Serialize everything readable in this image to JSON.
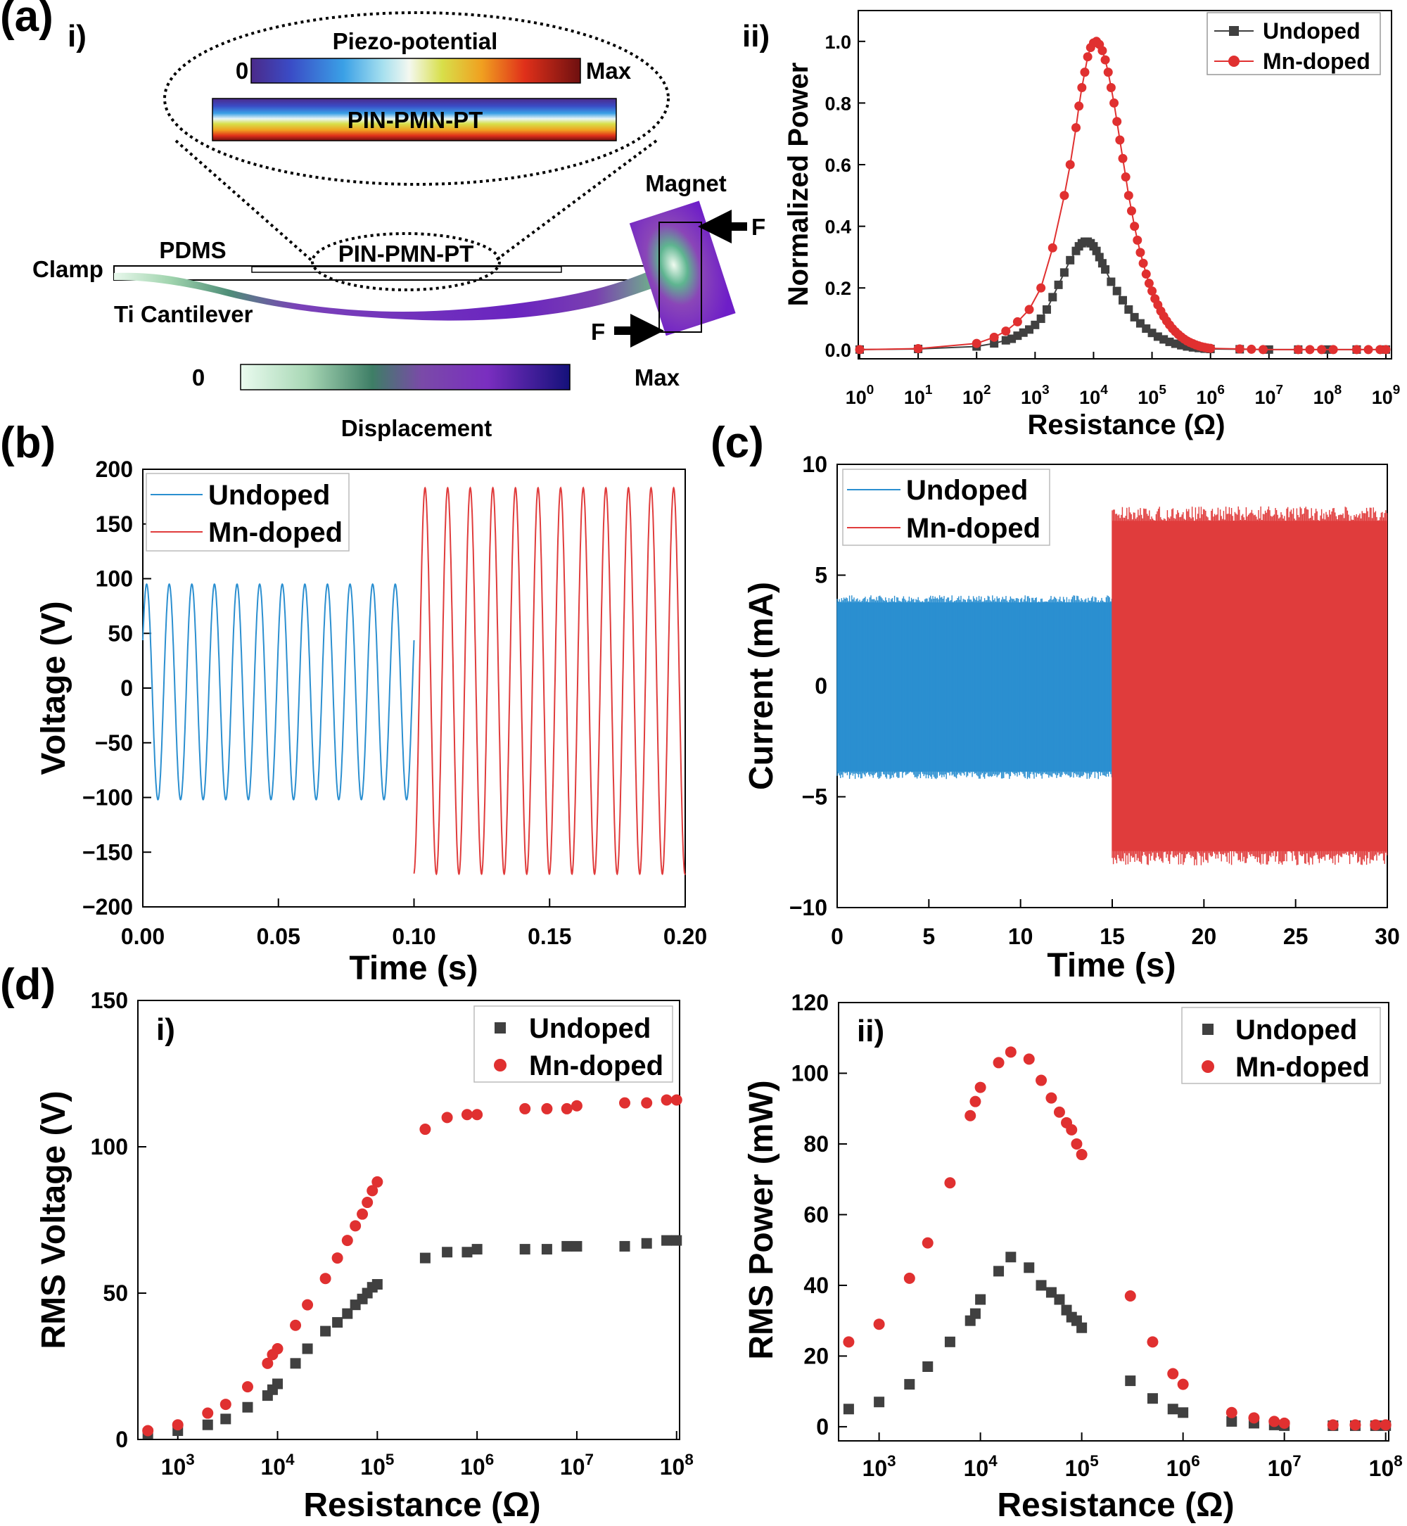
{
  "panel_labels": {
    "a": "(a)",
    "b": "(b)",
    "c": "(c)",
    "d": "(d)",
    "a_i": "i)",
    "a_ii": "ii)",
    "d_i": "i)",
    "d_ii": "ii)"
  },
  "schematic": {
    "piezo_title": "Piezo-potential",
    "piezo_min": "0",
    "piezo_max": "Max",
    "material": "PIN-PMN-PT",
    "material_small": "PIN-PMN-PT",
    "magnet": "Magnet",
    "pdms": "PDMS",
    "clamp": "Clamp",
    "cantilever": "Ti Cantilever",
    "force1": "F",
    "force2": "F",
    "disp_min": "0",
    "disp_max": "Max",
    "disp_title": "Displacement"
  },
  "colors": {
    "undoped_gray": "#404040",
    "mn_red": "#e03030",
    "undoped_blue": "#2b8fd0",
    "mn_red2": "#e03c3c"
  },
  "chart_data": [
    {
      "id": "a-ii",
      "type": "line",
      "title": "",
      "xlabel": "Resistance (Ω)",
      "ylabel": "Normalized Power",
      "xscale": "log",
      "xlim_exp": [
        0,
        9
      ],
      "ylim": [
        -0.03,
        1.1
      ],
      "xticks_exp": [
        0,
        1,
        2,
        3,
        4,
        5,
        6,
        7,
        8,
        9
      ],
      "yticks": [
        0.0,
        0.2,
        0.4,
        0.6,
        0.8,
        1.0
      ],
      "ytick_labels": [
        "0.0",
        "0.2",
        "0.4",
        "0.6",
        "0.8",
        "1.0"
      ],
      "legend": [
        "Undoped",
        "Mn-doped"
      ],
      "legend_position": "top-right",
      "series": [
        {
          "name": "Undoped",
          "marker": "square",
          "x_exp": [
            0,
            1,
            2,
            2.3,
            2.5,
            2.6,
            2.7,
            2.8,
            2.9,
            3.0,
            3.1,
            3.2,
            3.3,
            3.4,
            3.5,
            3.6,
            3.7,
            3.75,
            3.8,
            3.85,
            3.9,
            3.95,
            4.0,
            4.05,
            4.1,
            4.15,
            4.2,
            4.3,
            4.4,
            4.5,
            4.6,
            4.7,
            4.8,
            4.9,
            5.0,
            5.1,
            5.2,
            5.3,
            5.4,
            5.5,
            5.6,
            5.7,
            5.8,
            5.9,
            6.0,
            6.5,
            7.0,
            7.5,
            8.0,
            8.5,
            9.0
          ],
          "y": [
            0,
            0.002,
            0.01,
            0.02,
            0.03,
            0.035,
            0.045,
            0.055,
            0.065,
            0.08,
            0.1,
            0.13,
            0.17,
            0.21,
            0.25,
            0.29,
            0.32,
            0.335,
            0.345,
            0.35,
            0.35,
            0.345,
            0.335,
            0.32,
            0.3,
            0.28,
            0.26,
            0.22,
            0.19,
            0.16,
            0.13,
            0.105,
            0.085,
            0.068,
            0.054,
            0.042,
            0.033,
            0.025,
            0.019,
            0.014,
            0.01,
            0.007,
            0.005,
            0.003,
            0.002,
            0.001,
            0,
            0,
            0,
            0,
            0
          ]
        },
        {
          "name": "Mn-doped",
          "marker": "circle",
          "x_exp": [
            0,
            1,
            2,
            2.3,
            2.5,
            2.7,
            2.9,
            3.1,
            3.3,
            3.5,
            3.6,
            3.7,
            3.75,
            3.8,
            3.85,
            3.9,
            3.95,
            4.0,
            4.05,
            4.1,
            4.15,
            4.2,
            4.25,
            4.3,
            4.35,
            4.4,
            4.45,
            4.5,
            4.55,
            4.6,
            4.65,
            4.7,
            4.75,
            4.8,
            4.85,
            4.9,
            4.95,
            5.0,
            5.05,
            5.1,
            5.15,
            5.2,
            5.25,
            5.3,
            5.35,
            5.4,
            5.45,
            5.5,
            5.55,
            5.6,
            5.65,
            5.7,
            5.75,
            5.8,
            5.85,
            5.9,
            5.95,
            6.0,
            6.5,
            6.7,
            6.9,
            7.5,
            7.7,
            7.9,
            8.1,
            8.5,
            8.7,
            8.9,
            9.0
          ],
          "y": [
            0,
            0.003,
            0.02,
            0.04,
            0.06,
            0.09,
            0.13,
            0.2,
            0.33,
            0.5,
            0.6,
            0.72,
            0.79,
            0.85,
            0.9,
            0.95,
            0.98,
            0.995,
            1.0,
            0.99,
            0.97,
            0.94,
            0.9,
            0.85,
            0.8,
            0.74,
            0.68,
            0.62,
            0.56,
            0.5,
            0.45,
            0.4,
            0.355,
            0.315,
            0.28,
            0.245,
            0.215,
            0.19,
            0.165,
            0.145,
            0.125,
            0.108,
            0.093,
            0.08,
            0.068,
            0.058,
            0.049,
            0.041,
            0.034,
            0.028,
            0.023,
            0.019,
            0.015,
            0.012,
            0.009,
            0.007,
            0.005,
            0.004,
            0.002,
            0.001,
            0,
            0,
            0,
            0,
            0,
            0,
            0,
            0,
            0
          ]
        }
      ]
    },
    {
      "id": "b",
      "type": "line",
      "xlabel": "Time (s)",
      "ylabel": "Voltage (V)",
      "xlim": [
        0,
        0.2
      ],
      "ylim": [
        -200,
        200
      ],
      "xticks": [
        0.0,
        0.05,
        0.1,
        0.15,
        0.2
      ],
      "xtick_labels": [
        "0.00",
        "0.05",
        "0.10",
        "0.15",
        "0.20"
      ],
      "yticks": [
        -200,
        -150,
        -100,
        -50,
        0,
        50,
        100,
        150,
        200
      ],
      "ytick_labels": [
        "−200",
        "−150",
        "−100",
        "−50",
        "0",
        "50",
        "100",
        "150",
        "200"
      ],
      "legend": [
        "Undoped",
        "Mn-doped"
      ],
      "legend_position": "top-left",
      "series": [
        {
          "name": "Undoped",
          "t_start": 0.0,
          "t_end": 0.1,
          "cycles": 12,
          "max": 95,
          "min": -102
        },
        {
          "name": "Mn-doped",
          "t_start": 0.1,
          "t_end": 0.2,
          "cycles": 12,
          "max": 183,
          "min": -170
        }
      ]
    },
    {
      "id": "c",
      "type": "line",
      "xlabel": "Time (s)",
      "ylabel": "Current (mA)",
      "xlim": [
        0,
        30
      ],
      "ylim": [
        -10,
        10
      ],
      "xticks": [
        0,
        5,
        10,
        15,
        20,
        25,
        30
      ],
      "xtick_labels": [
        "0",
        "5",
        "10",
        "15",
        "20",
        "25",
        "30"
      ],
      "yticks": [
        -10,
        -5,
        0,
        5,
        10
      ],
      "ytick_labels": [
        "−10",
        "−5",
        "0",
        "5",
        "10"
      ],
      "legend": [
        "Undoped",
        "Mn-doped"
      ],
      "legend_position": "top-left",
      "series": [
        {
          "name": "Undoped",
          "t_start": 0,
          "t_end": 15,
          "max": 4.1,
          "min": -4.2
        },
        {
          "name": "Mn-doped",
          "t_start": 15,
          "t_end": 30,
          "max": 8.1,
          "min": -8.1
        }
      ]
    },
    {
      "id": "d-i",
      "type": "scatter",
      "xlabel": "Resistance (Ω)",
      "ylabel": "RMS Voltage (V)",
      "xscale": "log",
      "xlim_exp": [
        2.6,
        8.03
      ],
      "ylim": [
        0,
        150
      ],
      "xticks_exp": [
        3,
        4,
        5,
        6,
        7,
        8
      ],
      "yticks": [
        0,
        50,
        100,
        150
      ],
      "ytick_labels": [
        "0",
        "50",
        "100",
        "150"
      ],
      "legend": [
        "Undoped",
        "Mn-doped"
      ],
      "legend_position": "top-right",
      "series": [
        {
          "name": "Undoped",
          "marker": "square",
          "x_exp": [
            2.7,
            3.0,
            3.3,
            3.48,
            3.7,
            3.9,
            3.95,
            4.0,
            4.18,
            4.3,
            4.48,
            4.6,
            4.7,
            4.78,
            4.85,
            4.9,
            4.95,
            5.0,
            5.48,
            5.7,
            5.9,
            6.0,
            6.48,
            6.7,
            6.9,
            7.0,
            7.48,
            7.7,
            7.9,
            8.0
          ],
          "y": [
            2,
            3,
            5,
            7,
            11,
            15,
            17,
            19,
            26,
            31,
            37,
            40,
            43,
            46,
            48,
            50,
            52,
            53,
            62,
            64,
            64,
            65,
            65,
            65,
            66,
            66,
            66,
            67,
            68,
            68
          ]
        },
        {
          "name": "Mn-doped",
          "marker": "circle",
          "x_exp": [
            2.7,
            3.0,
            3.3,
            3.48,
            3.7,
            3.9,
            3.95,
            4.0,
            4.18,
            4.3,
            4.48,
            4.6,
            4.7,
            4.78,
            4.85,
            4.9,
            4.95,
            5.0,
            5.48,
            5.7,
            5.9,
            6.0,
            6.48,
            6.7,
            6.9,
            7.0,
            7.48,
            7.7,
            7.9,
            8.0
          ],
          "y": [
            3,
            5,
            9,
            12,
            18,
            26,
            29,
            31,
            39,
            46,
            55,
            62,
            68,
            73,
            77,
            81,
            85,
            88,
            106,
            110,
            111,
            111,
            113,
            113,
            113,
            114,
            115,
            115,
            116,
            116
          ]
        }
      ]
    },
    {
      "id": "d-ii",
      "type": "scatter",
      "xlabel": "Resistance (Ω)",
      "ylabel": "RMS Power (mW)",
      "xscale": "log",
      "xlim_exp": [
        2.6,
        8.03
      ],
      "ylim": [
        -4,
        120
      ],
      "xticks_exp": [
        3,
        4,
        5,
        6,
        7,
        8
      ],
      "yticks": [
        0,
        20,
        40,
        60,
        80,
        100,
        120
      ],
      "ytick_labels": [
        "0",
        "20",
        "40",
        "60",
        "80",
        "100",
        "120"
      ],
      "legend": [
        "Undoped",
        "Mn-doped"
      ],
      "legend_position": "top-right",
      "series": [
        {
          "name": "Undoped",
          "marker": "square",
          "x_exp": [
            2.7,
            3.0,
            3.3,
            3.48,
            3.7,
            3.9,
            3.95,
            4.0,
            4.18,
            4.3,
            4.48,
            4.6,
            4.7,
            4.78,
            4.85,
            4.9,
            4.95,
            5.0,
            5.48,
            5.7,
            5.9,
            6.0,
            6.48,
            6.7,
            6.9,
            7.0,
            7.48,
            7.7,
            7.9,
            8.0
          ],
          "y": [
            5,
            7,
            12,
            17,
            24,
            30,
            32,
            36,
            44,
            48,
            45,
            40,
            38,
            36,
            33,
            31,
            30,
            28,
            13,
            8,
            5,
            4,
            1.5,
            1,
            0.5,
            0.3,
            0.3,
            0.3,
            0.3,
            0.3
          ]
        },
        {
          "name": "Mn-doped",
          "marker": "circle",
          "x_exp": [
            2.7,
            3.0,
            3.3,
            3.48,
            3.7,
            3.9,
            3.95,
            4.0,
            4.18,
            4.3,
            4.48,
            4.6,
            4.7,
            4.78,
            4.85,
            4.9,
            4.95,
            5.0,
            5.48,
            5.7,
            5.9,
            6.0,
            6.48,
            6.7,
            6.9,
            7.0,
            7.48,
            7.7,
            7.9,
            8.0
          ],
          "y": [
            24,
            29,
            42,
            52,
            69,
            88,
            92,
            96,
            103,
            106,
            104,
            98,
            93,
            89,
            86,
            84,
            80,
            77,
            37,
            24,
            15,
            12,
            4,
            2.5,
            1.5,
            1,
            0.5,
            0.5,
            0.5,
            0.5
          ]
        }
      ]
    }
  ]
}
